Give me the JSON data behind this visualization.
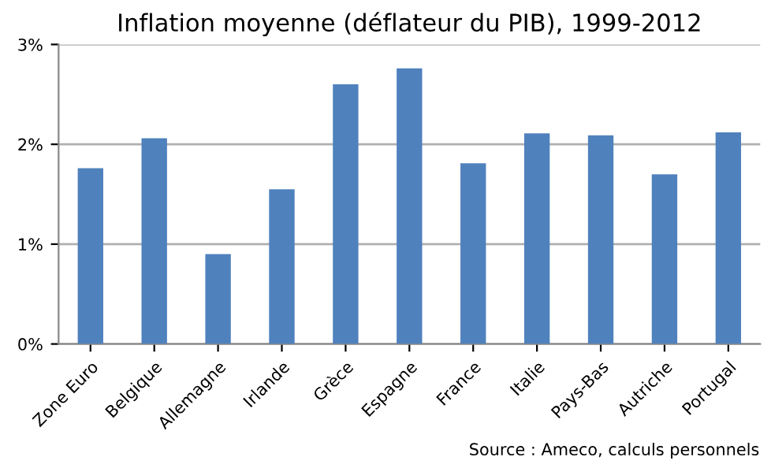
{
  "chart_data": {
    "type": "bar",
    "title": "Inflation moyenne (déflateur du PIB), 1999-2012",
    "categories": [
      "Zone Euro",
      "Belgique",
      "Allemagne",
      "Irlande",
      "Grèce",
      "Espagne",
      "France",
      "Italie",
      "Pays-Bas",
      "Autriche",
      "Portugal"
    ],
    "values": [
      1.76,
      2.06,
      0.9,
      1.55,
      2.6,
      2.76,
      1.81,
      2.11,
      2.09,
      1.7,
      2.12
    ],
    "color": "#4f81bd",
    "ylim": [
      0,
      3
    ],
    "yticks": [
      {
        "value": 0,
        "label": "0%"
      },
      {
        "value": 1,
        "label": "1%"
      },
      {
        "value": 2,
        "label": "2%"
      },
      {
        "value": 3,
        "label": "3%"
      }
    ],
    "grid": "y",
    "annotations": [
      "Source : Ameco, calculs personnels"
    ]
  }
}
